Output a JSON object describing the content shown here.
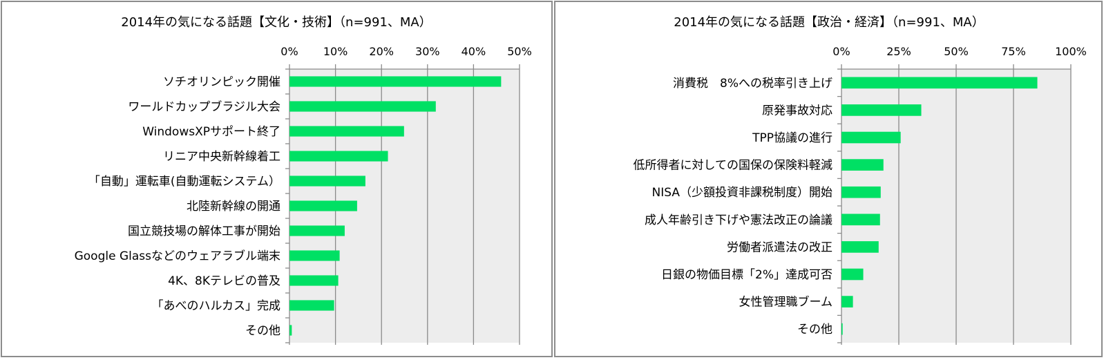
{
  "chart_data": [
    {
      "type": "bar",
      "orientation": "horizontal",
      "title": "2014年の気になる話題【文化・技術】（n=991、MA）",
      "categories": [
        "ソチオリンピック開催",
        "ワールドカップブラジル大会",
        "WindowsXPサポート終了",
        "リニア中央新幹線着工",
        "「自動」運転車(自動運転システム）",
        "北陸新幹線の開通",
        "国立競技場の解体工事が開始",
        "Google Glassなどのウェアラブル端末",
        "4K、8Kテレビの普及",
        "「あべのハルカス」完成",
        "その他"
      ],
      "values": [
        46.0,
        31.8,
        24.9,
        21.4,
        16.5,
        14.7,
        12.0,
        10.9,
        10.6,
        9.7,
        0.5
      ],
      "xlim": [
        0,
        50
      ],
      "ticks": [
        0,
        10,
        20,
        30,
        40,
        50
      ],
      "tick_labels": [
        "0%",
        "10%",
        "20%",
        "30%",
        "40%",
        "50%"
      ],
      "grid": true,
      "bar_color": "#00e064",
      "plot_bg": "#ededed"
    },
    {
      "type": "bar",
      "orientation": "horizontal",
      "title": "2014年の気になる話題【政治・経済】（n=991、MA）",
      "categories": [
        "消費税　8%への税率引き上げ",
        "原発事故対応",
        "TPP協議の進行",
        "低所得者に対しての国保の保険料軽減",
        "NISA（少額投資非課税制度）開始",
        "成人年齢引き下げや憲法改正の論議",
        "労働者派遣法の改正",
        "日銀の物価目標「2%」達成可否",
        "女性管理職ブーム",
        "その他"
      ],
      "values": [
        85.4,
        34.8,
        25.8,
        18.3,
        17.1,
        16.8,
        16.2,
        9.5,
        5.0,
        0.5
      ],
      "xlim": [
        0,
        100
      ],
      "ticks": [
        0,
        25,
        50,
        75,
        100
      ],
      "tick_labels": [
        "0%",
        "25%",
        "50%",
        "75%",
        "100%"
      ],
      "grid": true,
      "bar_color": "#00e064",
      "plot_bg": "#ededed"
    }
  ]
}
